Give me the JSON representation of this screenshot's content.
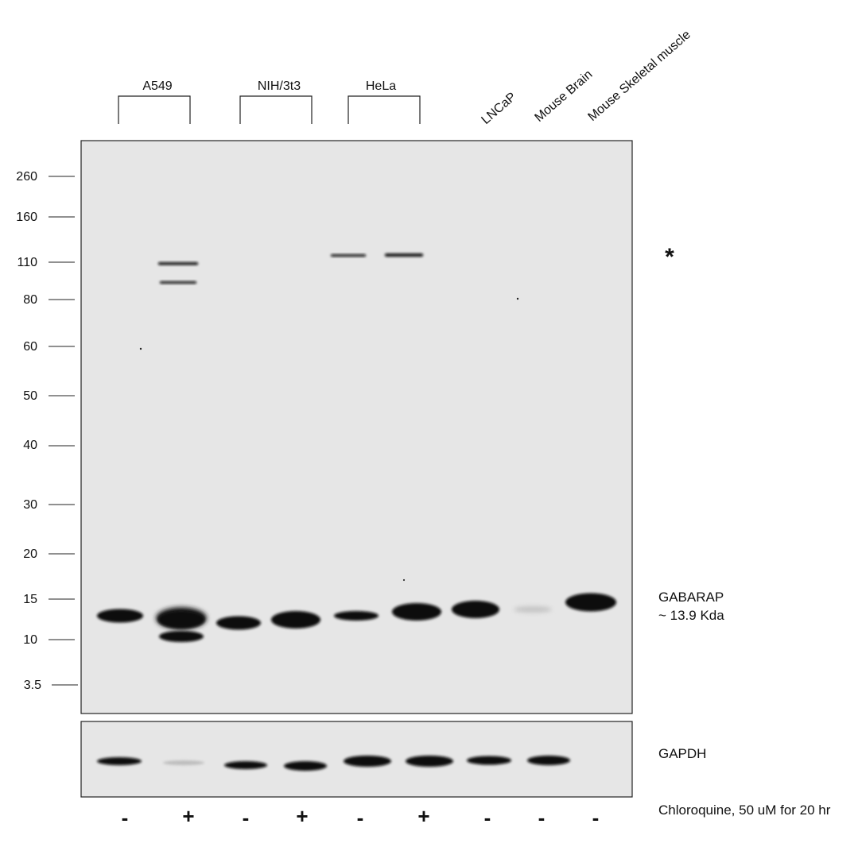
{
  "groups": [
    {
      "label": "A549"
    },
    {
      "label": "NIH/3t3"
    },
    {
      "label": "HeLa"
    }
  ],
  "single_lanes": [
    {
      "label": "LNCaP"
    },
    {
      "label": "Mouse Brain"
    },
    {
      "label": "Mouse Skeletal muscle"
    }
  ],
  "markers": [
    "260",
    "160",
    "110",
    "80",
    "60",
    "50",
    "40",
    "30",
    "20",
    "15",
    "10",
    "3.5"
  ],
  "nonspecific_marker": "*",
  "target": {
    "name": "GABARAP",
    "size": "~ 13.9 Kda"
  },
  "loading_control": {
    "name": "GAPDH"
  },
  "treatment": {
    "label": "Chloroquine, 50 uM for 20 hr",
    "signs": [
      "-",
      "+",
      "-",
      "+",
      "-",
      "+",
      "-",
      "-",
      "-"
    ]
  },
  "colors": {
    "membrane": "#e6e6e6",
    "band": "#0a0a0a",
    "frame": "#222222"
  }
}
